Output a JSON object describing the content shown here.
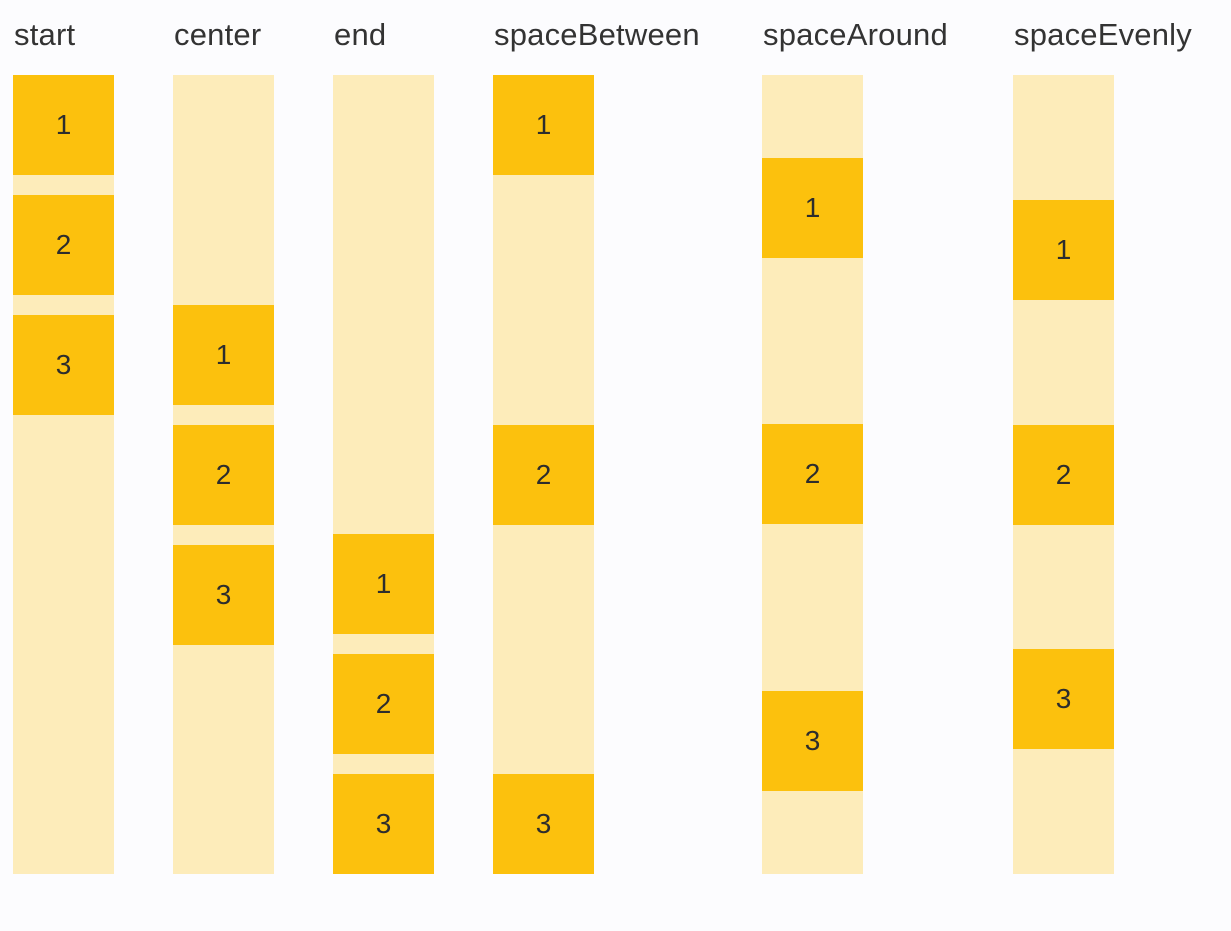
{
  "figure": {
    "kind": "main-axis-alignment-demo",
    "box_count_per_column": 3
  },
  "colors": {
    "background": "#fcfcfe",
    "track": "#fdecba",
    "box": "#fcc10d",
    "label_text": "#333333",
    "number_text": "#2d2d2d"
  },
  "columns": [
    {
      "label": "start",
      "mode": "start",
      "items": [
        "1",
        "2",
        "3"
      ]
    },
    {
      "label": "center",
      "mode": "center",
      "items": [
        "1",
        "2",
        "3"
      ]
    },
    {
      "label": "end",
      "mode": "end",
      "items": [
        "1",
        "2",
        "3"
      ]
    },
    {
      "label": "spaceBetween",
      "mode": "space-between",
      "items": [
        "1",
        "2",
        "3"
      ]
    },
    {
      "label": "spaceAround",
      "mode": "space-around",
      "items": [
        "1",
        "2",
        "3"
      ]
    },
    {
      "label": "spaceEvenly",
      "mode": "space-evenly",
      "items": [
        "1",
        "2",
        "3"
      ]
    }
  ]
}
